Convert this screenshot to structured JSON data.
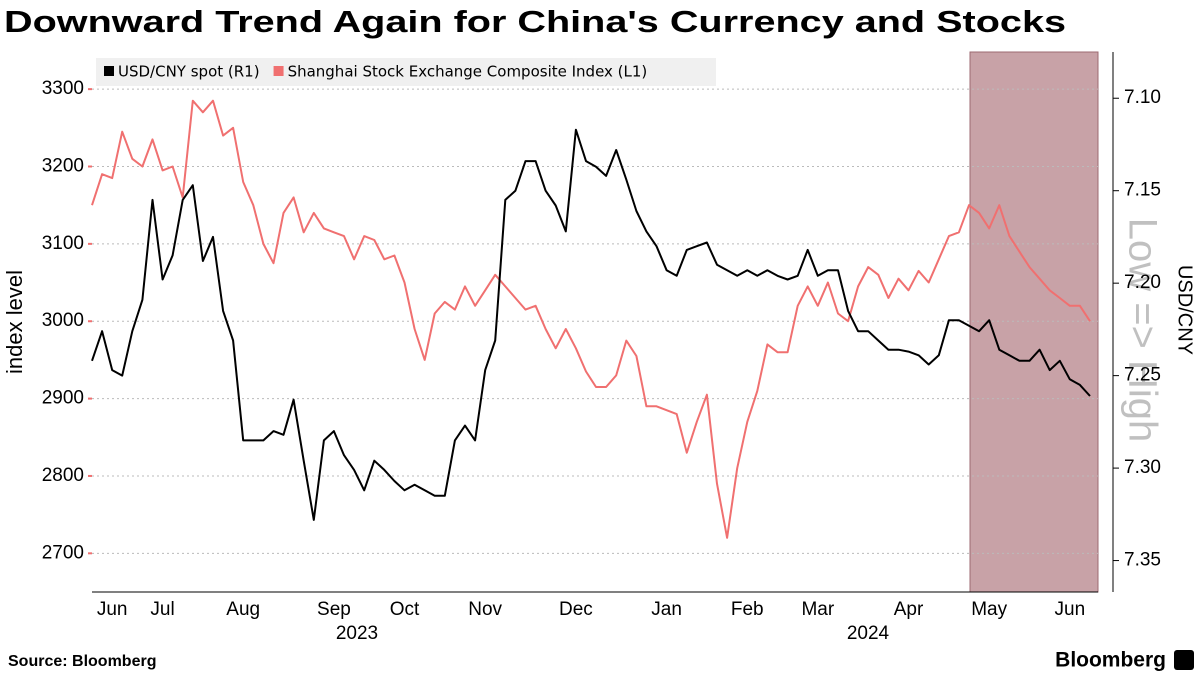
{
  "chart_data": {
    "type": "line",
    "title": "Downward Trend Again for China's Currency and Stocks",
    "ylabel": "index level",
    "y2label": "USD/CNY",
    "annotation": "Low => High",
    "source": "Source: Bloomberg",
    "brand": "Bloomberg",
    "x_year_labels": [
      "2023",
      "2024"
    ],
    "categories": [
      null,
      null,
      "Jun",
      null,
      null,
      null,
      null,
      "Jul",
      null,
      null,
      null,
      null,
      null,
      null,
      null,
      "Aug",
      null,
      null,
      null,
      null,
      null,
      null,
      null,
      null,
      "Sep",
      null,
      null,
      null,
      null,
      null,
      null,
      "Oct",
      null,
      null,
      null,
      null,
      null,
      null,
      null,
      "Nov",
      null,
      null,
      null,
      null,
      null,
      null,
      null,
      null,
      "Dec",
      null,
      null,
      null,
      null,
      null,
      null,
      null,
      null,
      "Jan",
      null,
      null,
      null,
      null,
      null,
      null,
      null,
      "Feb",
      null,
      null,
      null,
      null,
      null,
      null,
      "Mar",
      null,
      null,
      null,
      null,
      null,
      null,
      null,
      null,
      "Apr",
      null,
      null,
      null,
      null,
      null,
      null,
      null,
      "May",
      null,
      null,
      null,
      null,
      null,
      null,
      null,
      "Jun",
      null,
      null
    ],
    "series": [
      {
        "name": "USD/CNY spot (R1)",
        "color": "#000000",
        "axis": "y2",
        "values": [
          7.242,
          7.226,
          7.247,
          7.25,
          7.226,
          7.209,
          7.155,
          7.198,
          7.185,
          7.155,
          7.147,
          7.188,
          7.175,
          7.215,
          7.231,
          7.285,
          7.285,
          7.285,
          7.28,
          7.282,
          7.263,
          7.296,
          7.328,
          7.285,
          7.28,
          7.293,
          7.301,
          7.312,
          7.296,
          7.301,
          7.307,
          7.312,
          7.309,
          7.312,
          7.315,
          7.315,
          7.285,
          7.277,
          7.285,
          7.247,
          7.231,
          7.155,
          7.15,
          7.134,
          7.134,
          7.15,
          7.158,
          7.172,
          7.117,
          7.134,
          7.137,
          7.142,
          7.128,
          7.144,
          7.161,
          7.172,
          7.18,
          7.193,
          7.196,
          7.182,
          7.18,
          7.178,
          7.19,
          7.193,
          7.196,
          7.193,
          7.196,
          7.193,
          7.196,
          7.198,
          7.196,
          7.182,
          7.196,
          7.193,
          7.193,
          7.215,
          7.226,
          7.226,
          7.231,
          7.236,
          7.236,
          7.237,
          7.239,
          7.244,
          7.239,
          7.22,
          7.22,
          7.223,
          7.226,
          7.22,
          7.236,
          7.239,
          7.242,
          7.242,
          7.236,
          7.247,
          7.242,
          7.252,
          7.255,
          7.261
        ]
      },
      {
        "name": "Shanghai Stock Exchange Composite Index (L1)",
        "color": "#f07070",
        "values": [
          3150,
          3190,
          3185,
          3245,
          3210,
          3200,
          3235,
          3195,
          3200,
          3160,
          3285,
          3270,
          3285,
          3240,
          3250,
          3180,
          3150,
          3100,
          3075,
          3140,
          3160,
          3115,
          3140,
          3120,
          3115,
          3110,
          3080,
          3110,
          3105,
          3080,
          3085,
          3050,
          2990,
          2950,
          3010,
          3025,
          3015,
          3045,
          3020,
          3040,
          3060,
          3045,
          3030,
          3015,
          3020,
          2990,
          2965,
          2990,
          2965,
          2935,
          2915,
          2915,
          2930,
          2975,
          2955,
          2890,
          2890,
          2885,
          2880,
          2830,
          2870,
          2905,
          2790,
          2720,
          2810,
          2870,
          2910,
          2970,
          2960,
          2960,
          3020,
          3045,
          3020,
          3050,
          3010,
          3000,
          3045,
          3070,
          3060,
          3030,
          3055,
          3040,
          3065,
          3050,
          3080,
          3110,
          3115,
          3150,
          3140,
          3120,
          3150,
          3110,
          3090,
          3070,
          3055,
          3040,
          3030,
          3020,
          3020,
          3000
        ]
      }
    ],
    "ylim": [
      2650,
      3348
    ],
    "yticks": [
      2700,
      2800,
      2900,
      3000,
      3100,
      3200,
      3300
    ],
    "y2lim": [
      7.075,
      7.367
    ],
    "y2_inverted": true,
    "y2ticks": [
      {
        "value": 7.1,
        "label": "7.10"
      },
      {
        "value": 7.15,
        "label": "7.15"
      },
      {
        "value": 7.2,
        "label": "7.20"
      },
      {
        "value": 7.25,
        "label": "7.25"
      },
      {
        "value": 7.3,
        "label": "7.30"
      },
      {
        "value": 7.35,
        "label": "7.35"
      }
    ],
    "grid": true
  }
}
